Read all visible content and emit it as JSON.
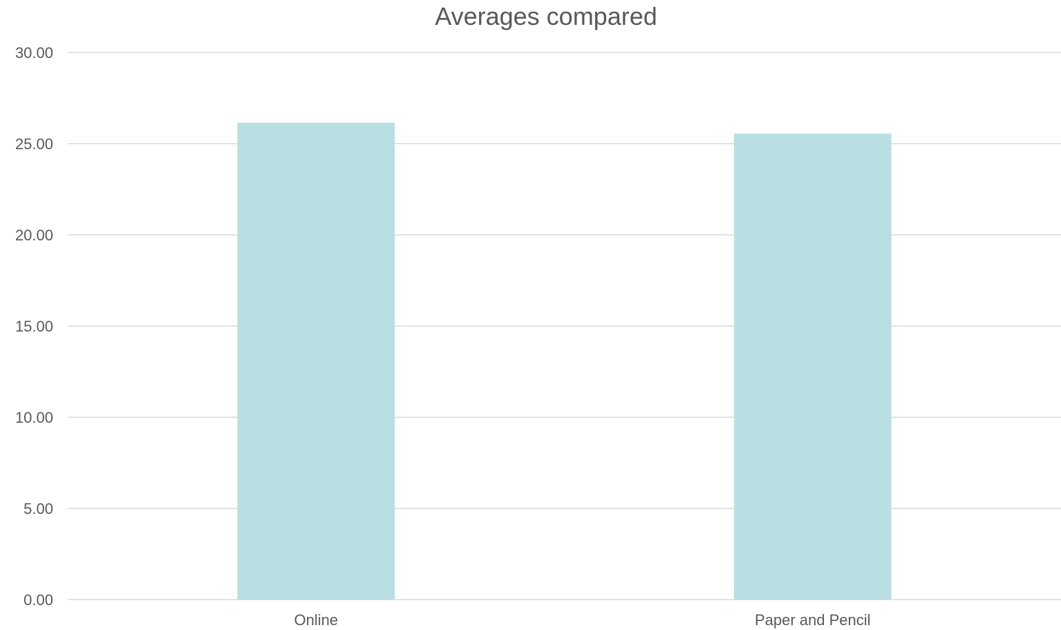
{
  "chart_data": {
    "type": "bar",
    "title": "Averages compared",
    "xlabel": "",
    "ylabel": "",
    "categories": [
      "Online",
      "Paper and Pencil"
    ],
    "values": [
      26.15,
      25.55
    ],
    "ylim": [
      0,
      30
    ],
    "yticks": [
      "0.00",
      "5.00",
      "10.00",
      "15.00",
      "20.00",
      "25.00",
      "30.00"
    ],
    "grid": true,
    "legend": "none",
    "colors": {
      "bar": "#b9dfe2",
      "grid": "#d9d9d9",
      "text": "#595959"
    }
  }
}
